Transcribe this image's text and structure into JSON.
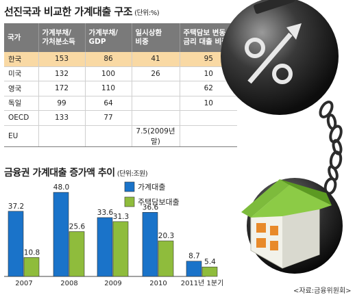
{
  "table": {
    "title": "선진국과 비교한 가계대출 구조",
    "unit": "(단위:%)",
    "headers": [
      {
        "line1": "국가",
        "line2": ""
      },
      {
        "line1": "가계부채/",
        "line2": "가처분소득"
      },
      {
        "line1": "가계부채/",
        "line2": "GDP"
      },
      {
        "line1": "일시상환",
        "line2": "비중"
      },
      {
        "line1": "주택담보 변동",
        "line2": "금리 대출 비중"
      }
    ],
    "rows": [
      {
        "country": "한국",
        "c1": "153",
        "c2": "86",
        "c3": "41",
        "c4": "95"
      },
      {
        "country": "미국",
        "c1": "132",
        "c2": "100",
        "c3": "26",
        "c4": "10"
      },
      {
        "country": "영국",
        "c1": "172",
        "c2": "110",
        "c3": "",
        "c4": "62"
      },
      {
        "country": "독일",
        "c1": "99",
        "c2": "64",
        "c3": "",
        "c4": "10"
      },
      {
        "country": "OECD",
        "c1": "133",
        "c2": "77",
        "c3": "",
        "c4": ""
      },
      {
        "country": "EU",
        "c1": "",
        "c2": "",
        "c3": "7.5(2009년말)",
        "c4": ""
      }
    ]
  },
  "chart_data": {
    "type": "bar",
    "title": "금융권 가계대출 증가액 추이",
    "unit": "(단위:조원)",
    "categories": [
      "2007",
      "2008",
      "2009",
      "2010",
      "2011년 1분기"
    ],
    "series": [
      {
        "name": "가계대출",
        "values": [
          37.2,
          48.0,
          33.6,
          36.6,
          8.7
        ],
        "labels": [
          "37.2",
          "48.0",
          "33.6",
          "36.6",
          "8.7"
        ]
      },
      {
        "name": "주택담보대출",
        "values": [
          10.8,
          25.6,
          31.3,
          20.3,
          5.4
        ],
        "labels": [
          "10.8",
          "25.6",
          "31.3",
          "20.3",
          "5.4"
        ]
      }
    ],
    "ylim": [
      0,
      50
    ],
    "grid": false,
    "legend": "top-right"
  },
  "colors": {
    "series1": "#1a73c9",
    "series2": "#8fbc3c",
    "table_header": "#7a7a7a",
    "highlight_row": "#f9d9a4"
  },
  "source": "<자료:금융위원회>",
  "illustration": {
    "percent_symbol": "%",
    "ball_icon": "debt-ball-and-chain-icon",
    "house_icon": "house-icon"
  }
}
